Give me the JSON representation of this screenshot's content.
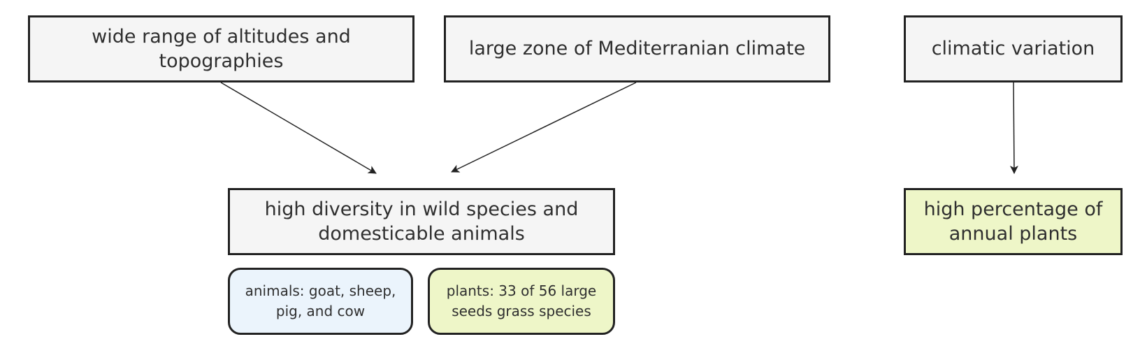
{
  "nodes": {
    "altitudes": "wide range of altitudes and topographies",
    "mediterranean": "large zone of Mediterranian climate",
    "climatic": "climatic variation",
    "diversity": "high diversity in wild species and domesticable animals",
    "annual": "high percentage of annual plants",
    "animals": "animals: goat, sheep, pig, and cow",
    "plants": "plants: 33 of 56 large seeds grass species"
  },
  "edges": [
    {
      "from": "altitudes",
      "to": "diversity"
    },
    {
      "from": "mediterranean",
      "to": "diversity"
    },
    {
      "from": "climatic",
      "to": "annual"
    }
  ],
  "colors": {
    "default_fill": "#f5f5f5",
    "accent_fill": "#eef6c8",
    "blue_fill": "#ebf4fc",
    "stroke": "#222222"
  }
}
